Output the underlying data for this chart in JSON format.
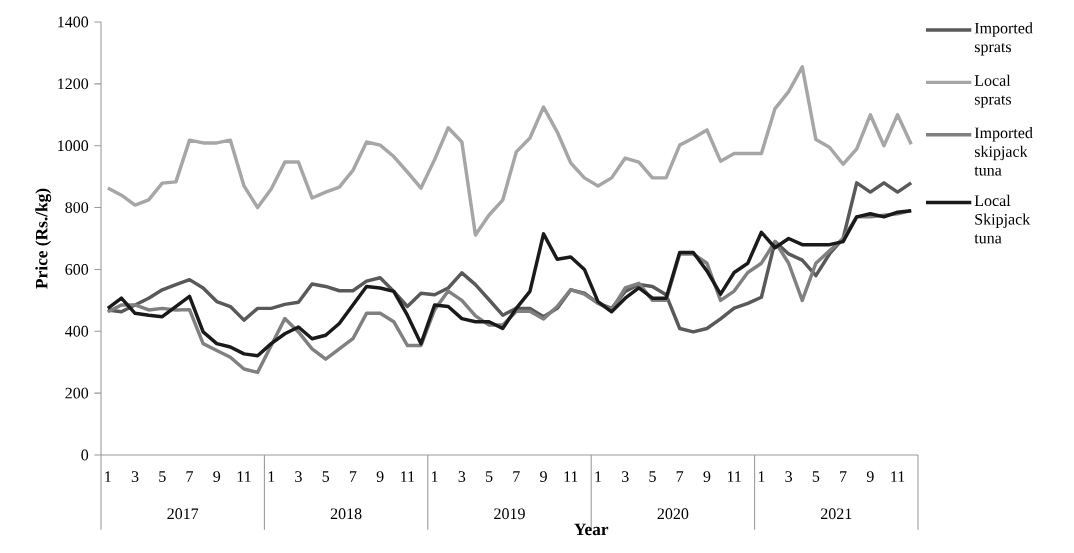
{
  "chart_data": {
    "type": "line",
    "xlabel": "Year",
    "ylabel": "Price (Rs./kg)",
    "categories": [
      "1",
      null,
      "3",
      null,
      "5",
      null,
      "7",
      null,
      "9",
      null,
      "11",
      null,
      "1",
      null,
      "3",
      null,
      "5",
      null,
      "7",
      null,
      "9",
      null,
      "11",
      null,
      "1",
      null,
      "3",
      null,
      "5",
      null,
      "7",
      null,
      "9",
      null,
      "11",
      null,
      "1",
      null,
      "3",
      null,
      "5",
      null,
      "7",
      null,
      "9",
      null,
      "11",
      null,
      "1",
      null,
      "3",
      null,
      "5",
      null,
      "7",
      null,
      "9",
      null,
      "11",
      null
    ],
    "annotations": [
      "2017",
      "2018",
      "2019",
      "2020",
      "2021"
    ],
    "ylim": [
      0,
      1400
    ],
    "yticks": [
      0,
      200,
      400,
      600,
      800,
      1000,
      1200,
      1400
    ],
    "legend": "right",
    "series": [
      {
        "name": "Imported sprats",
        "color": "#595959",
        "values": [
          469,
          463,
          485,
          507,
          534,
          551,
          567,
          540,
          496,
          480,
          436,
          474,
          474,
          487,
          494,
          553,
          545,
          531,
          531,
          562,
          573,
          529,
          480,
          523,
          518,
          540,
          589,
          551,
          502,
          452,
          474,
          474,
          447,
          474,
          534,
          523,
          491,
          474,
          529,
          551,
          545,
          518,
          409,
          398,
          409,
          440,
          475,
          490,
          510,
          690,
          650,
          630,
          580,
          650,
          700,
          880,
          850,
          880,
          850,
          880
        ]
      },
      {
        "name": "Local sprats",
        "color": "#a6a6a6",
        "values": [
          863,
          840,
          808,
          825,
          879,
          883,
          1018,
          1009,
          1009,
          1018,
          870,
          800,
          860,
          947,
          947,
          831,
          850,
          866,
          920,
          1012,
          1002,
          965,
          915,
          863,
          955,
          1058,
          1012,
          711,
          776,
          824,
          980,
          1025,
          1125,
          1045,
          944,
          896,
          870,
          896,
          960,
          947,
          896,
          896,
          1002,
          1025,
          1051,
          950,
          975,
          975,
          975,
          1120,
          1175,
          1255,
          1020,
          995,
          940,
          990,
          1100,
          1000,
          1100,
          1005
        ]
      },
      {
        "name": "Imported skipjack tuna",
        "color": "#808080",
        "values": [
          463,
          485,
          485,
          469,
          474,
          469,
          470,
          360,
          338,
          316,
          278,
          267,
          354,
          441,
          398,
          343,
          310,
          343,
          376,
          458,
          458,
          431,
          354,
          354,
          470,
          530,
          500,
          450,
          420,
          420,
          465,
          465,
          440,
          480,
          535,
          520,
          490,
          470,
          540,
          555,
          500,
          500,
          650,
          650,
          620,
          500,
          530,
          590,
          620,
          690,
          620,
          500,
          620,
          660,
          700,
          770,
          770,
          775,
          780,
          790
        ]
      },
      {
        "name": "Local Skipjack tuna",
        "color": "#1a1a1a",
        "values": [
          474,
          507,
          458,
          452,
          447,
          480,
          513,
          398,
          360,
          349,
          327,
          321,
          360,
          392,
          414,
          376,
          387,
          425,
          485,
          545,
          540,
          529,
          452,
          360,
          485,
          480,
          441,
          431,
          431,
          409,
          474,
          529,
          715,
          633,
          640,
          600,
          496,
          463,
          507,
          540,
          507,
          507,
          655,
          655,
          595,
          520,
          590,
          620,
          720,
          670,
          700,
          680,
          680,
          680,
          690,
          770,
          780,
          770,
          785,
          790
        ]
      }
    ]
  }
}
